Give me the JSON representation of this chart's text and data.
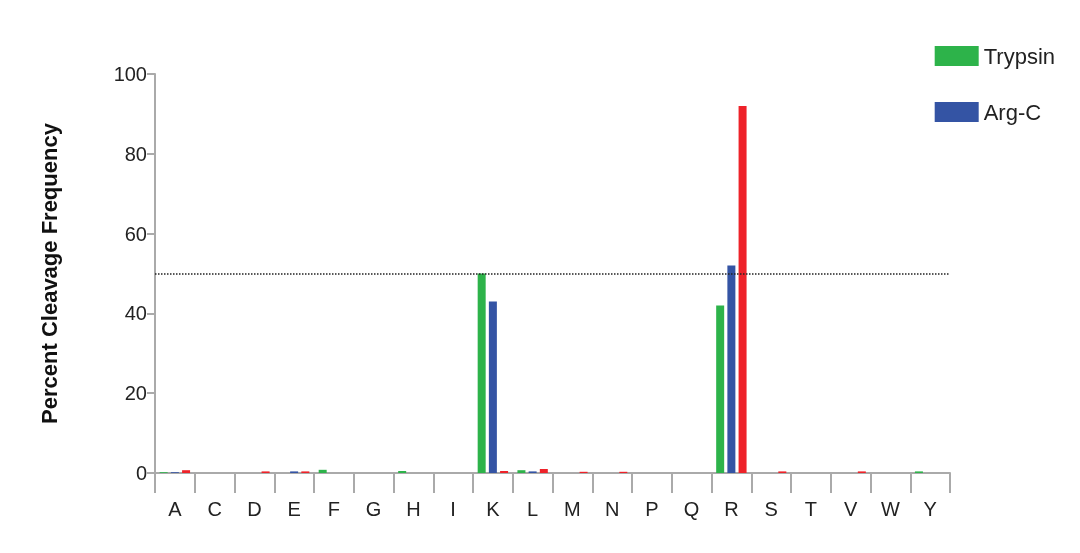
{
  "chart_data": {
    "type": "bar",
    "ylabel": "Percent Cleavage Frequency",
    "categories": [
      "A",
      "C",
      "D",
      "E",
      "F",
      "G",
      "H",
      "I",
      "K",
      "L",
      "M",
      "N",
      "P",
      "Q",
      "R",
      "S",
      "T",
      "V",
      "W",
      "Y"
    ],
    "series": [
      {
        "name": "Trypsin",
        "color": "#2db34a",
        "values": [
          0.2,
          0,
          0,
          0,
          0.8,
          0,
          0.5,
          0,
          50,
          0.7,
          0,
          0,
          0,
          0,
          42,
          0,
          0,
          0,
          0,
          0.4
        ]
      },
      {
        "name": "Arg-C",
        "color": "#3454a4",
        "values": [
          0.2,
          0,
          0,
          0.4,
          0,
          0,
          0,
          0,
          43,
          0.4,
          0,
          0,
          0,
          0,
          52,
          0,
          0,
          0,
          0,
          0
        ]
      },
      {
        "color": "#ee2229",
        "values": [
          0.7,
          0,
          0.4,
          0.4,
          0,
          0,
          0,
          0,
          0.5,
          1,
          0.3,
          0.3,
          0,
          0,
          92,
          0.4,
          0,
          0.4,
          0,
          0
        ]
      }
    ],
    "ylim": [
      0,
      100
    ],
    "yticks": [
      0,
      20,
      40,
      60,
      80,
      100
    ],
    "grid": false,
    "legend": "top right",
    "ref_lines": [
      {
        "axis": "y",
        "value": 50,
        "color": "#222222",
        "line_style": "dotted"
      }
    ]
  }
}
